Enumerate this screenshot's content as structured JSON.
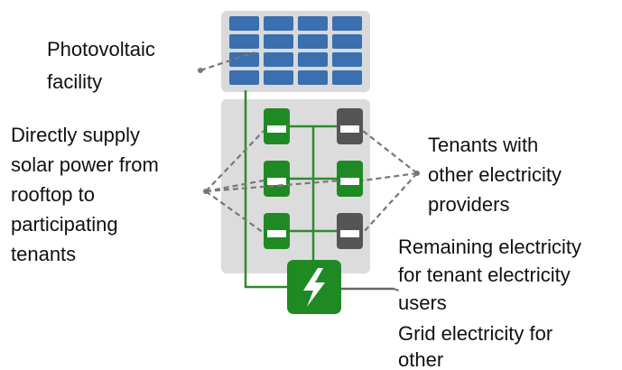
{
  "labels": {
    "photovoltaic": [
      "Photovoltaic",
      "facility"
    ],
    "direct_supply": [
      "Directly supply",
      "solar power from",
      "rooftop to",
      "participating",
      "tenants"
    ],
    "other_providers": [
      "Tenants with",
      "other electricity",
      "providers"
    ],
    "remaining": [
      "Remaining electricity",
      "for tenant electricity",
      "users"
    ],
    "grid": [
      "Grid electricity for",
      "other"
    ]
  }
}
